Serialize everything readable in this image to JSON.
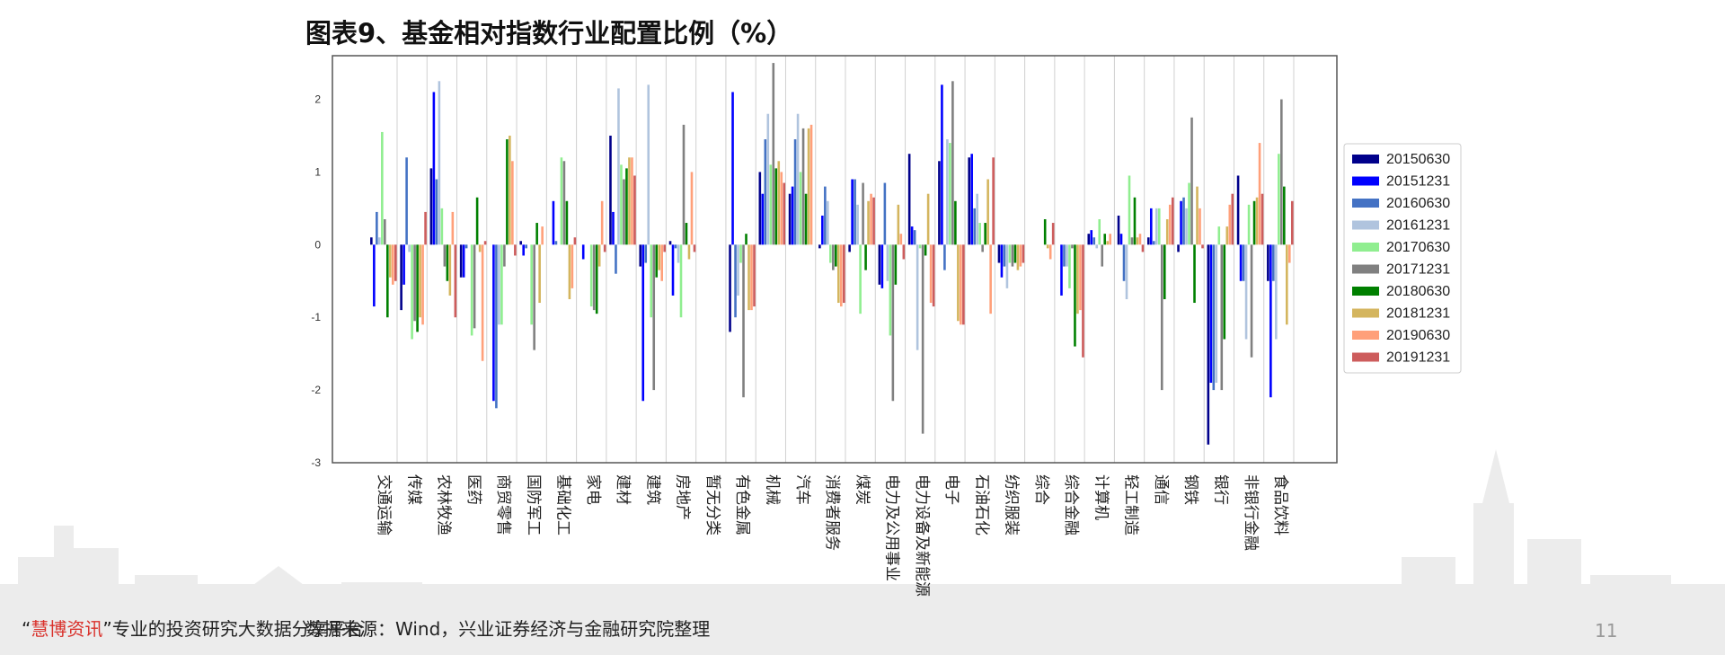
{
  "page": {
    "title": "图表9、基金相对指数行业配置比例（%）",
    "footer_quote_open": "“",
    "footer_brand": "慧博资讯",
    "footer_quote_close": "”",
    "footer_tagline": "专业的投资研究大数据分享平台",
    "footer_source": "数据来源：Wind，兴业证券经济与金融研究院整理",
    "page_number": "11"
  },
  "chart_data": {
    "type": "bar",
    "title": "",
    "xlabel": "",
    "ylabel": "",
    "ylim": [
      -3,
      2.6
    ],
    "yticks": [
      2,
      1,
      0,
      -1,
      -2,
      -3
    ],
    "grid": "vertical",
    "legend_position": "right",
    "categories": [
      "交通运输",
      "传媒",
      "农林牧渔",
      "医药",
      "商贸零售",
      "国防军工",
      "基础化工",
      "家电",
      "建材",
      "建筑",
      "房地产",
      "暂无分类",
      "有色金属",
      "机械",
      "汽车",
      "消费者服务",
      "煤炭",
      "电力及公用事业",
      "电力设备及新能源",
      "电子",
      "石油石化",
      "纺织服装",
      "综合",
      "综合金融",
      "计算机",
      "轻工制造",
      "通信",
      "钢铁",
      "银行",
      "非银行金融",
      "食品饮料"
    ],
    "series": [
      {
        "name": "20150630",
        "color": "#00008b",
        "values": [
          0.1,
          -0.9,
          1.05,
          -0.45,
          0.0,
          0.05,
          0.0,
          0.0,
          1.5,
          -0.3,
          0.05,
          0.0,
          -1.2,
          1.0,
          0.7,
          -0.05,
          -0.1,
          -0.55,
          1.25,
          1.15,
          1.2,
          -0.25,
          0.0,
          0.0,
          0.15,
          0.4,
          0.1,
          -0.1,
          -2.75,
          0.95,
          -0.5
        ]
      },
      {
        "name": "20151231",
        "color": "#0000ff",
        "values": [
          -0.85,
          -0.55,
          2.1,
          -0.45,
          -2.15,
          -0.15,
          0.6,
          -0.2,
          0.45,
          -2.15,
          -0.7,
          0.0,
          2.1,
          0.7,
          0.8,
          0.4,
          0.9,
          -0.6,
          0.25,
          2.2,
          1.25,
          -0.45,
          0.0,
          -0.7,
          0.2,
          0.15,
          0.5,
          0.6,
          -1.9,
          -0.5,
          -2.1
        ]
      },
      {
        "name": "20160630",
        "color": "#4472c4",
        "values": [
          0.45,
          1.2,
          0.9,
          -0.05,
          -2.25,
          -0.05,
          0.05,
          0.0,
          -0.4,
          -0.25,
          -0.05,
          0.0,
          -1.0,
          1.45,
          1.45,
          0.8,
          0.9,
          0.85,
          0.2,
          -0.35,
          0.5,
          -0.3,
          0.0,
          -0.3,
          0.1,
          -0.5,
          0.05,
          0.65,
          -2.0,
          -0.5,
          -0.5
        ]
      },
      {
        "name": "20161231",
        "color": "#b0c4de",
        "values": [
          0.1,
          -0.1,
          2.25,
          0.0,
          -1.1,
          0.0,
          0.0,
          0.0,
          2.15,
          2.2,
          -0.25,
          0.0,
          -0.7,
          1.8,
          1.8,
          0.6,
          0.55,
          -0.5,
          -1.45,
          1.45,
          0.7,
          -0.6,
          0.0,
          -0.3,
          -0.05,
          -0.75,
          0.5,
          0.5,
          -1.9,
          -1.3,
          -1.3
        ]
      },
      {
        "name": "20170630",
        "color": "#90ee90",
        "values": [
          1.55,
          -1.3,
          0.5,
          -1.25,
          -1.1,
          -1.1,
          1.2,
          -0.85,
          1.1,
          -1.0,
          -1.0,
          0.0,
          -0.25,
          1.1,
          1.0,
          -0.25,
          -0.95,
          -1.25,
          -0.05,
          1.4,
          0.3,
          -0.25,
          0.0,
          -0.6,
          0.35,
          0.95,
          0.5,
          0.85,
          0.25,
          0.55,
          1.25
        ]
      },
      {
        "name": "20171231",
        "color": "#808080",
        "values": [
          0.35,
          -1.05,
          -0.3,
          -1.15,
          -0.3,
          -1.45,
          1.15,
          -0.9,
          0.9,
          -2.0,
          1.65,
          0.0,
          -2.1,
          2.5,
          1.6,
          -0.35,
          0.85,
          -2.15,
          -2.6,
          2.25,
          -0.1,
          -0.3,
          0.0,
          -0.05,
          -0.3,
          0.1,
          -2.0,
          1.75,
          -2.0,
          -1.55,
          2.0
        ]
      },
      {
        "name": "20180630",
        "color": "#008000",
        "values": [
          -1.0,
          -1.2,
          -0.5,
          0.65,
          1.45,
          0.3,
          0.6,
          -0.95,
          1.05,
          -0.45,
          0.3,
          0.0,
          0.15,
          1.05,
          0.7,
          -0.3,
          -0.35,
          -0.55,
          -0.15,
          0.6,
          0.3,
          -0.25,
          0.35,
          -1.4,
          0.15,
          0.65,
          -0.75,
          -0.8,
          -1.3,
          0.6,
          0.8
        ]
      },
      {
        "name": "20181231",
        "color": "#d4b55e",
        "values": [
          -0.45,
          -1.0,
          -0.7,
          -0.1,
          1.5,
          -0.8,
          -0.75,
          -0.3,
          1.2,
          -0.35,
          -0.2,
          0.0,
          -0.9,
          1.15,
          1.6,
          -0.8,
          0.6,
          0.55,
          0.7,
          -1.05,
          0.9,
          -0.35,
          -0.05,
          -0.95,
          0.05,
          0.1,
          0.35,
          0.8,
          0.25,
          0.65,
          -1.1
        ]
      },
      {
        "name": "20190630",
        "color": "#ffa07a",
        "values": [
          -0.55,
          -1.1,
          0.45,
          -1.6,
          1.15,
          0.25,
          -0.6,
          0.6,
          1.2,
          -0.5,
          1.0,
          0.0,
          -0.9,
          1.0,
          1.65,
          -0.85,
          0.7,
          0.15,
          -0.8,
          -1.1,
          -0.95,
          -0.3,
          -0.2,
          -0.9,
          0.15,
          0.15,
          0.55,
          0.5,
          0.55,
          1.4,
          -0.25
        ]
      },
      {
        "name": "20191231",
        "color": "#cd5c5c",
        "values": [
          -0.5,
          0.45,
          -1.0,
          0.05,
          -0.15,
          0.0,
          0.1,
          -0.1,
          0.95,
          -0.1,
          -0.1,
          0.0,
          -0.85,
          0.85,
          0.0,
          -0.8,
          0.65,
          -0.2,
          -0.85,
          -1.1,
          1.2,
          -0.25,
          0.3,
          -1.55,
          0.0,
          -0.1,
          0.65,
          -0.05,
          0.7,
          0.7,
          0.6
        ]
      }
    ]
  }
}
